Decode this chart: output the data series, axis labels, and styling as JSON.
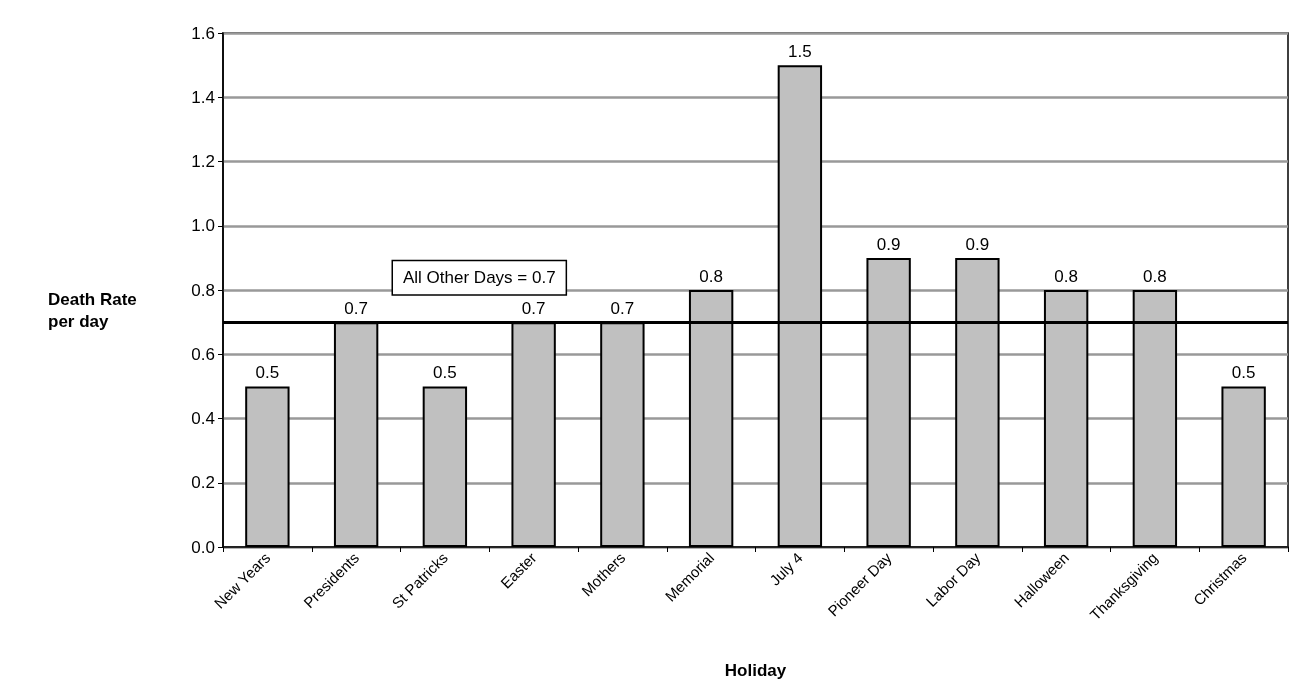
{
  "chart_data": {
    "type": "bar",
    "xlabel": "Holiday",
    "ylabel": "Death Rate per day",
    "categories": [
      "New Years",
      "Presidents",
      "St Patricks",
      "Easter",
      "Mothers",
      "Memorial",
      "July 4",
      "Pioneer Day",
      "Labor Day",
      "Halloween",
      "Thanksgiving",
      "Christmas"
    ],
    "values": [
      0.5,
      0.7,
      0.5,
      0.7,
      0.7,
      0.8,
      1.5,
      0.9,
      0.9,
      0.8,
      0.8,
      0.5
    ],
    "color": "#c0c0c0",
    "ylim": [
      0,
      1.6
    ],
    "yticks": [
      {
        "value": 0,
        "label": "0.0"
      },
      {
        "value": 0.2,
        "label": "0.2"
      },
      {
        "value": 0.4,
        "label": "0.4"
      },
      {
        "value": 0.6,
        "label": "0.6"
      },
      {
        "value": 0.8,
        "label": "0.8"
      },
      {
        "value": 1.0,
        "label": "1.0"
      },
      {
        "value": 1.2,
        "label": "1.2"
      },
      {
        "value": 1.4,
        "label": "1.4"
      },
      {
        "value": 1.6,
        "label": "1.6"
      }
    ],
    "grid": "y",
    "data_labels": true,
    "ref_lines": [
      {
        "axis": "y",
        "value": 0.7,
        "label": "All Other Days = 0.7",
        "color": "#000000"
      }
    ]
  }
}
